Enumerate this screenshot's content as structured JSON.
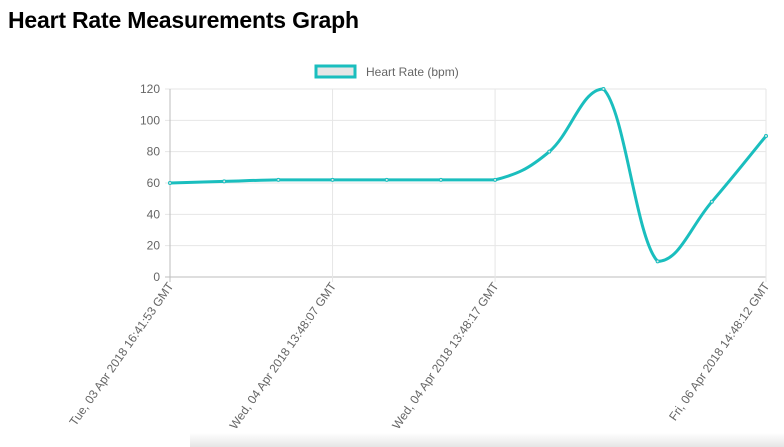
{
  "page": {
    "title": "Heart Rate Measurements Graph"
  },
  "chart_data": {
    "type": "line",
    "title": "",
    "xlabel": "",
    "ylabel": "",
    "ylim": [
      0,
      120
    ],
    "y_ticks": [
      0,
      20,
      40,
      60,
      80,
      100,
      120
    ],
    "x_tick_labels": [
      "Tue, 03 Apr 2018 16:41:53 GMT",
      "Wed, 04 Apr 2018 13:48:07 GMT",
      "Wed, 04 Apr 2018 13:48:17 GMT",
      "Fri, 06 Apr 2018 14:48:12 GMT"
    ],
    "x_tick_point_index": [
      0,
      3,
      6,
      11
    ],
    "grid": true,
    "legend": "top-center",
    "series": [
      {
        "name": "Heart Rate (bpm)",
        "color": "#1ABEBE",
        "fill": "#E6E6E6",
        "values": [
          60,
          61,
          62,
          62,
          62,
          62,
          62,
          80,
          120,
          10,
          48,
          90
        ]
      }
    ]
  }
}
